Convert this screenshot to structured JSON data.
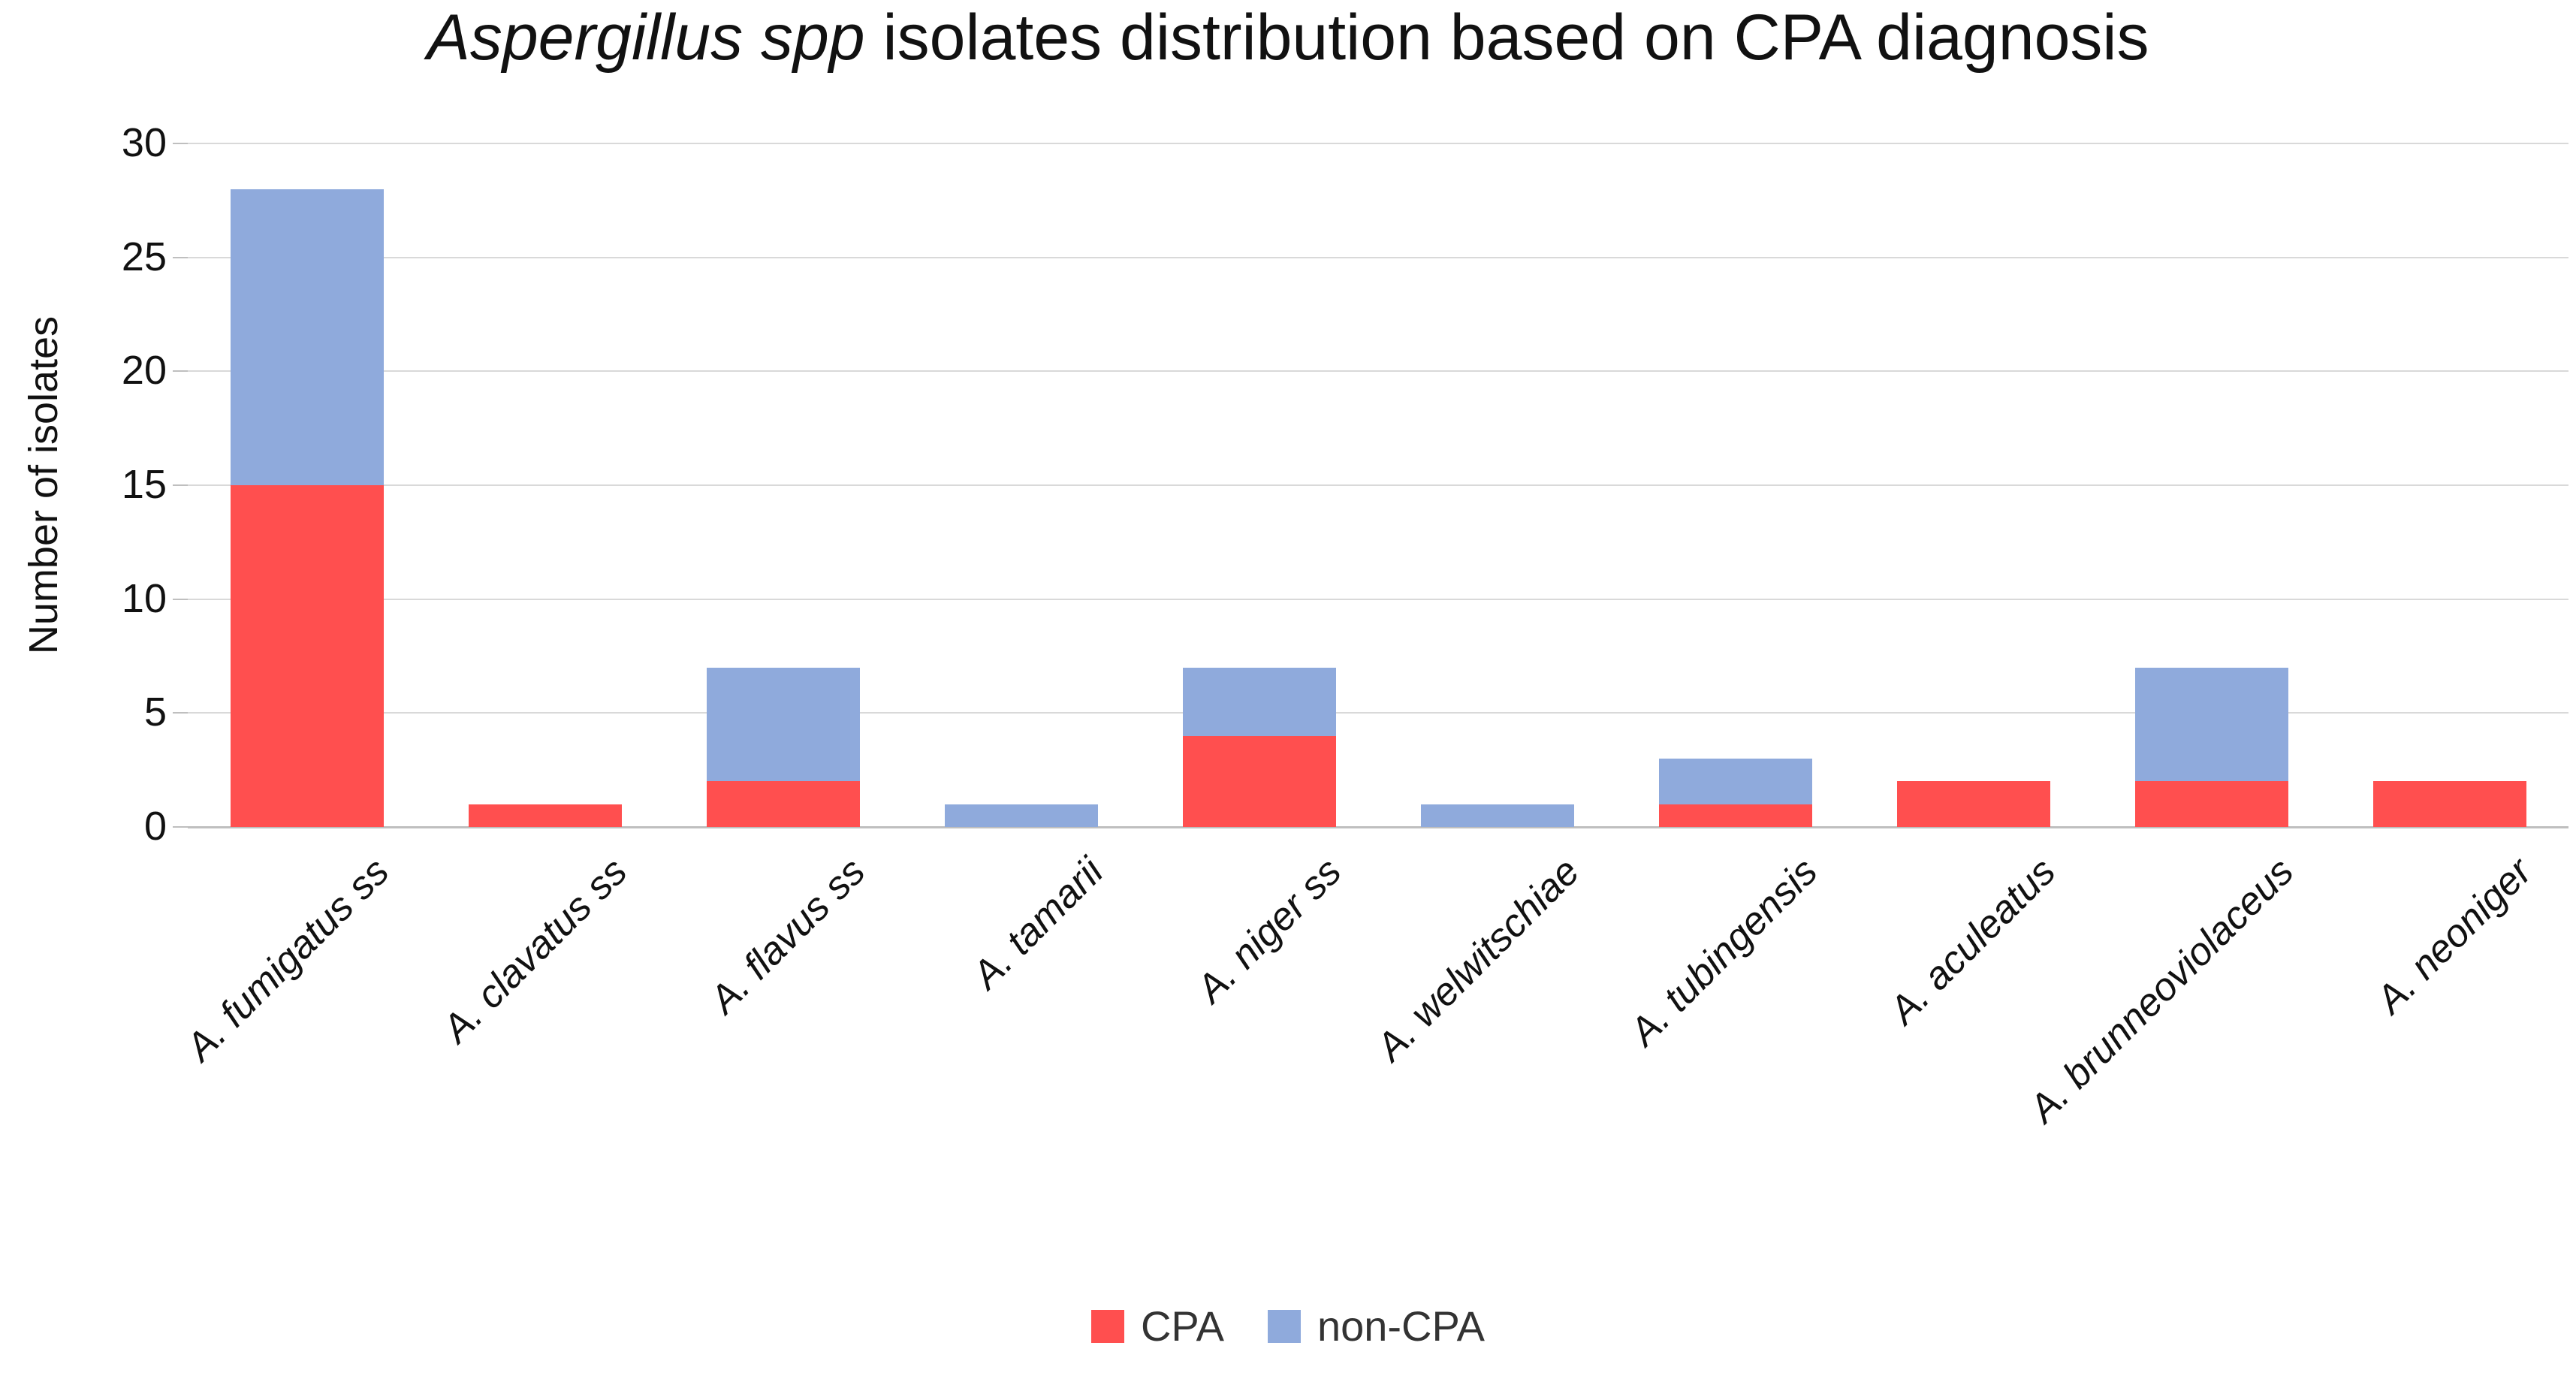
{
  "title": {
    "italic": "Aspergillus spp",
    "rest": " isolates distribution based on CPA diagnosis"
  },
  "y_axis": {
    "label": "Number of isolates",
    "ticks": [
      0,
      5,
      10,
      15,
      20,
      25,
      30
    ]
  },
  "legend": [
    {
      "label": "CPA",
      "color": "#ff4f4f"
    },
    {
      "label": "non-CPA",
      "color": "#8faadc"
    }
  ],
  "colors": {
    "cpa_red": "#ff4f4f",
    "non_cpa_blue": "#8faadc",
    "gridline": "#d9d9d9",
    "axis_line": "#bfbfbf",
    "text": "#111111"
  },
  "chart_data": {
    "type": "bar",
    "stacked": true,
    "title": "Aspergillus spp isolates distribution based on CPA diagnosis",
    "xlabel": "",
    "ylabel": "Number of isolates",
    "ylim": [
      0,
      30
    ],
    "ytick_step": 5,
    "grid": "horizontal",
    "legend_position": "bottom",
    "categories": [
      "A. fumigatus ss",
      "A. clavatus ss",
      "A. flavus ss",
      "A. tamarii",
      "A. niger ss",
      "A. welwitschiae",
      "A. tubingensis",
      "A. aculeatus",
      "A. brunneoviolaceus",
      "A. neoniger"
    ],
    "series": [
      {
        "name": "CPA",
        "color": "#ff4f4f",
        "values": [
          15,
          1,
          2,
          0,
          4,
          0,
          1,
          2,
          2,
          2
        ]
      },
      {
        "name": "non-CPA",
        "color": "#8faadc",
        "values": [
          13,
          0,
          5,
          1,
          3,
          1,
          2,
          0,
          5,
          0
        ]
      }
    ],
    "totals": [
      28,
      1,
      7,
      1,
      7,
      1,
      3,
      2,
      7,
      2
    ]
  }
}
